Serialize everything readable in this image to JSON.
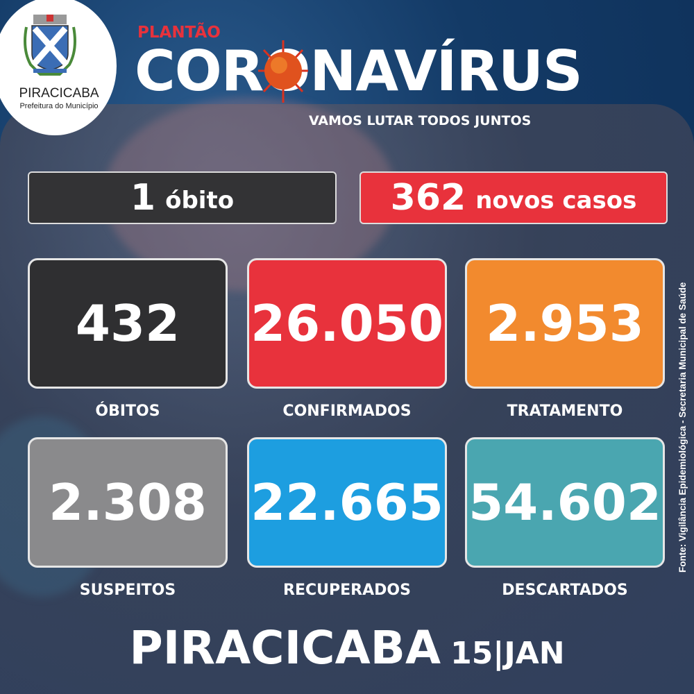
{
  "logo": {
    "name": "PIRACICABA",
    "subtitle": "Prefeitura do Município"
  },
  "header": {
    "kicker": "PLANTÃO",
    "title": "CORONAVÍRUS",
    "slogan": "VAMOS LUTAR TODOS JUNTOS"
  },
  "banners": [
    {
      "value": "1",
      "label": "óbito",
      "color": "#333335"
    },
    {
      "value": "362",
      "label": "novos casos",
      "color": "#e8323c"
    }
  ],
  "stats": [
    {
      "value": "432",
      "label": "ÓBITOS",
      "color": "#2f2f31"
    },
    {
      "value": "26.050",
      "label": "CONFIRMADOS",
      "color": "#e8323c"
    },
    {
      "value": "2.953",
      "label": "TRATAMENTO",
      "color": "#f28a2e"
    },
    {
      "value": "2.308",
      "label": "SUSPEITOS",
      "color": "#8a8a8c"
    },
    {
      "value": "22.665",
      "label": "RECUPERADOS",
      "color": "#1d9ee0"
    },
    {
      "value": "54.602",
      "label": "DESCARTADOS",
      "color": "#4aa6b0"
    }
  ],
  "source": "Fonte: Vigilância Epidemiológica - Secretaria Municipal de Saúde",
  "footer": {
    "city": "PIRACICABA",
    "date": "15|JAN"
  }
}
